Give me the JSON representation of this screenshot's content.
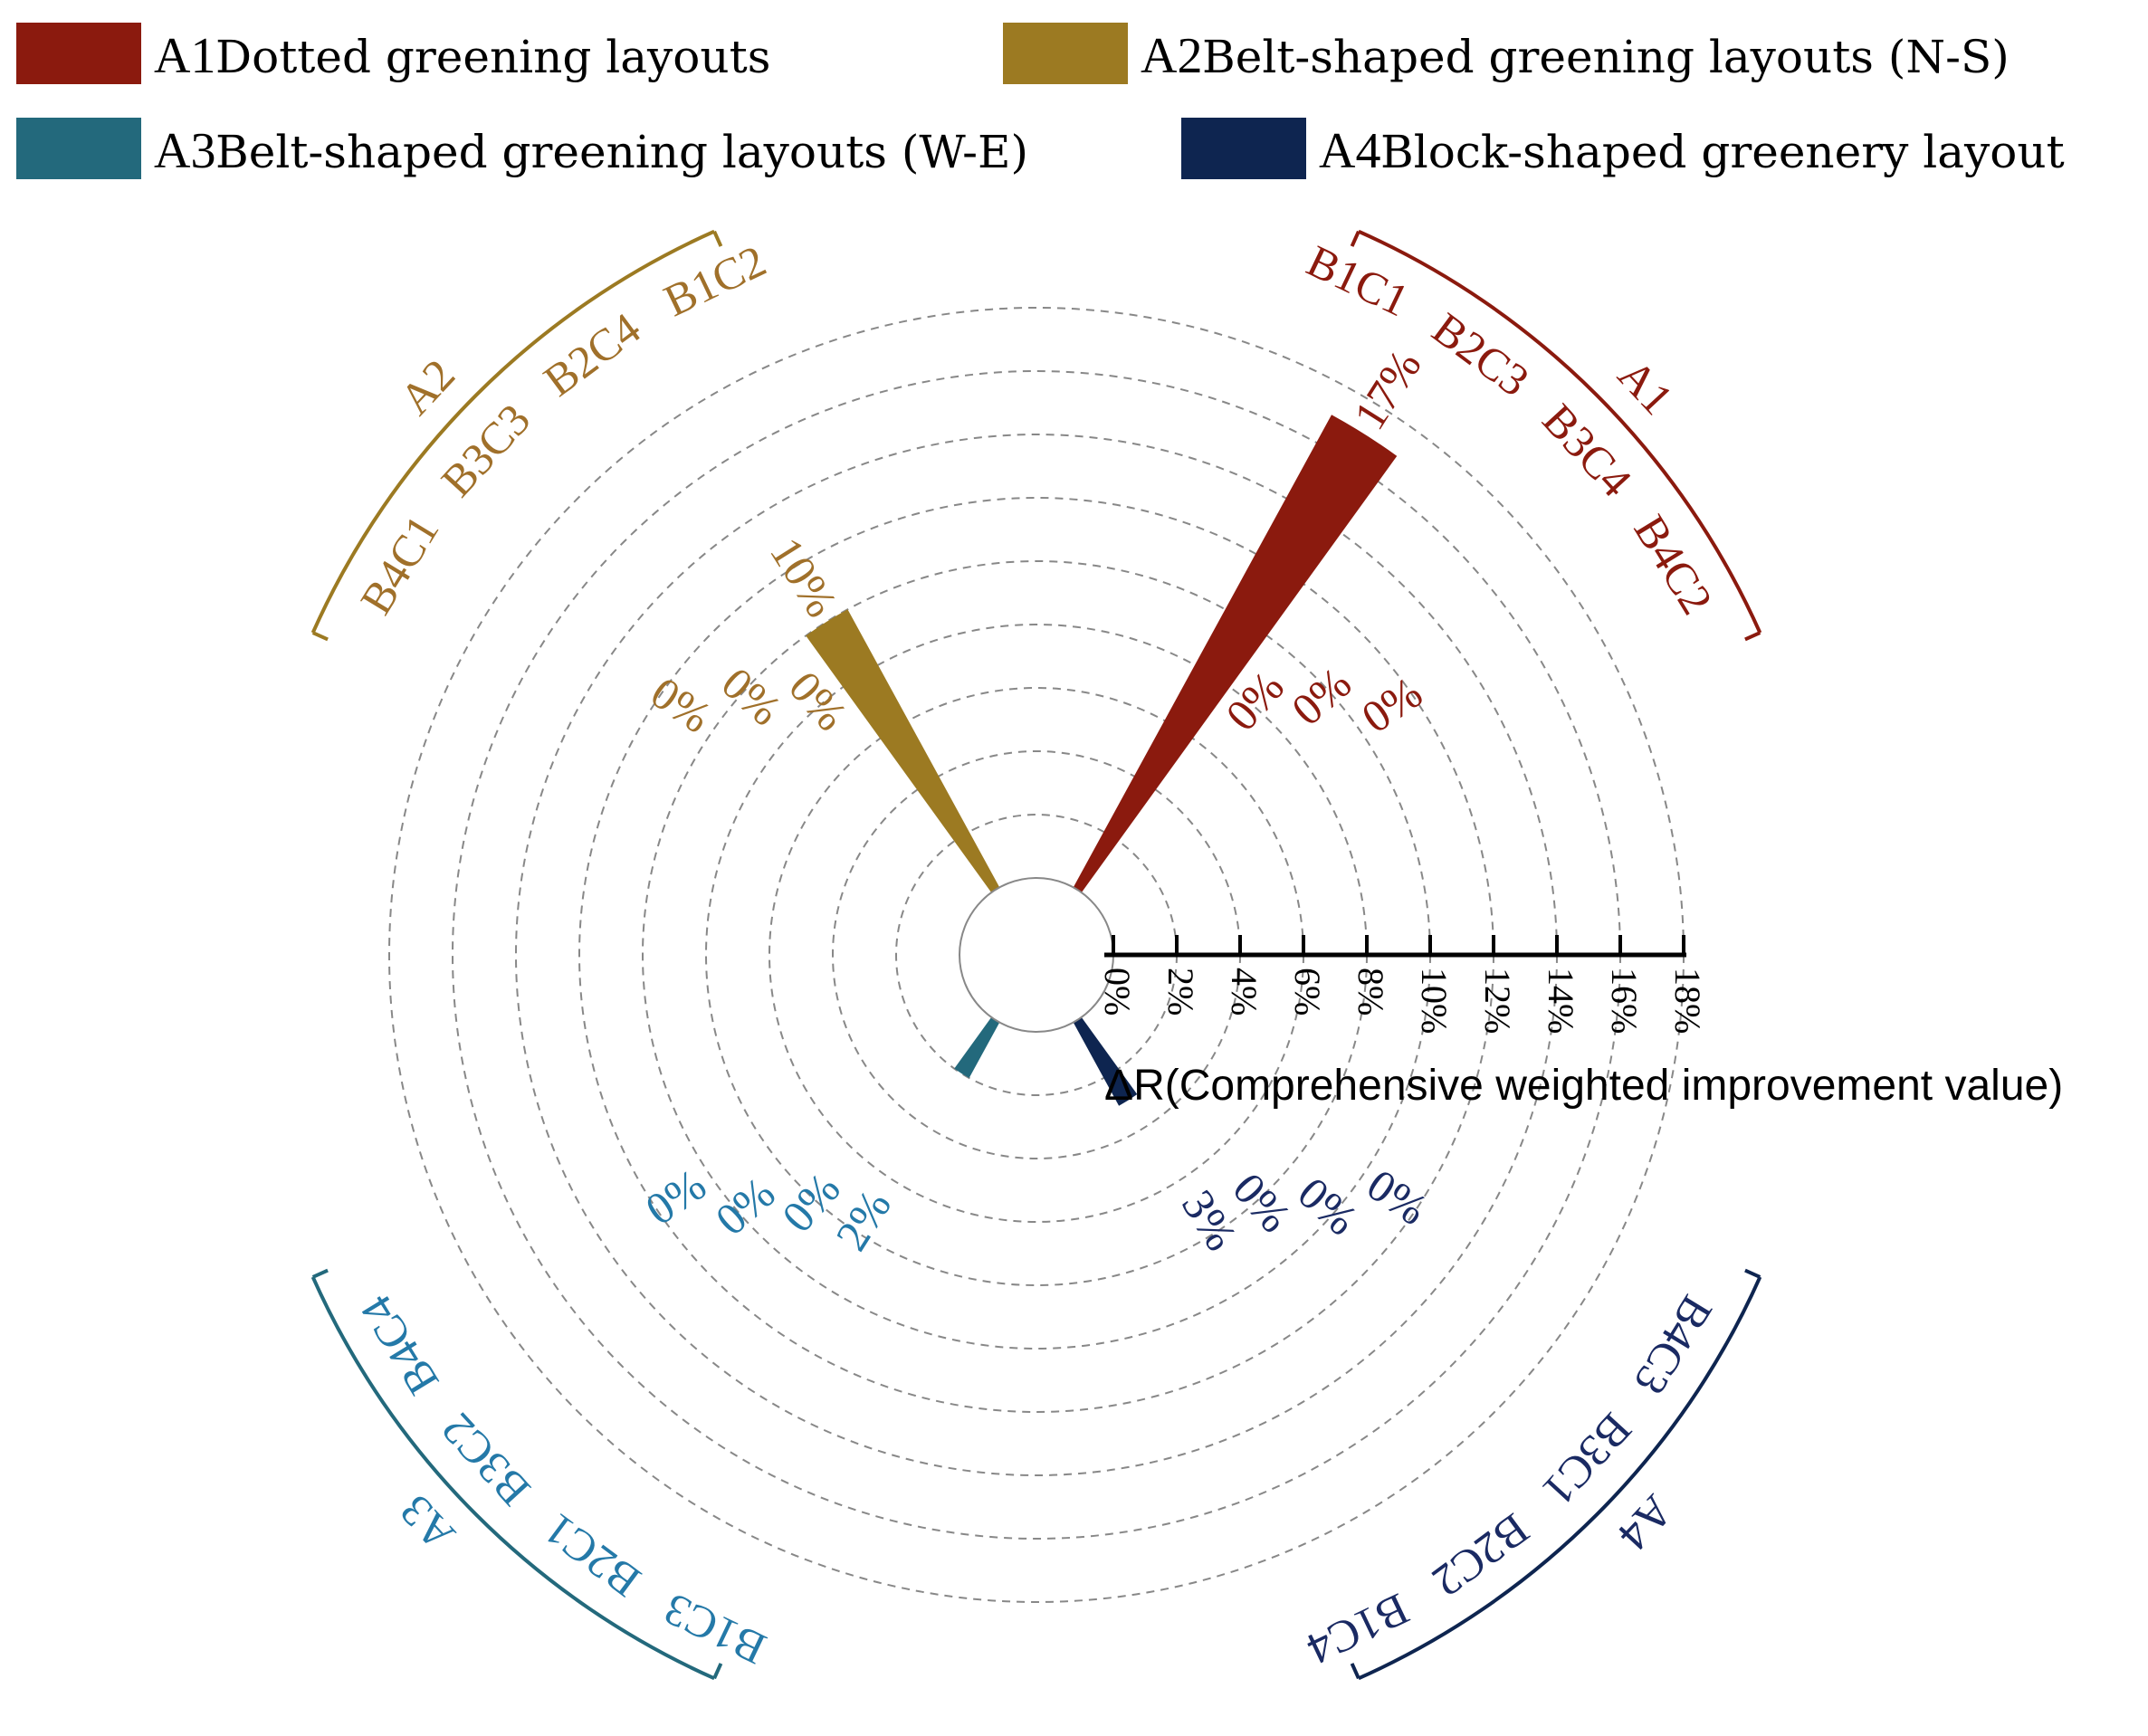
{
  "legend": [
    {
      "code": "A1",
      "label": "Dotted greening layouts",
      "color": "#8B1A0E"
    },
    {
      "code": "A2",
      "label": "Belt-shaped greening layouts (N-S)",
      "color": "#9C7A22"
    },
    {
      "code": "A3",
      "label": "Belt-shaped greening layouts (W-E)",
      "color": "#23697C"
    },
    {
      "code": "A4",
      "label": "Block-shaped greenery layout",
      "color": "#0E2550"
    }
  ],
  "chart_data": {
    "type": "polar-bar",
    "value_axis": {
      "title": "ΔR(Comprehensive weighted improvement value)",
      "ticks": [
        "0%",
        "2%",
        "4%",
        "6%",
        "8%",
        "10%",
        "12%",
        "14%",
        "16%",
        "18%"
      ],
      "range": [
        0,
        18
      ],
      "gridlines": true
    },
    "groups": [
      {
        "name": "A1",
        "color": "#8B1A0E",
        "label_color": "#8B1A0E",
        "items": [
          {
            "category": "B1C1",
            "value": 17,
            "label": "17%"
          },
          {
            "category": "B2C3",
            "value": 0,
            "label": "0%"
          },
          {
            "category": "B3C4",
            "value": 0,
            "label": "0%"
          },
          {
            "category": "B4C2",
            "value": 0,
            "label": "0%"
          }
        ]
      },
      {
        "name": "A2",
        "color": "#9C7A22",
        "label_color": "#A0702A",
        "items": [
          {
            "category": "B1C2",
            "value": 10,
            "label": "10%"
          },
          {
            "category": "B2C4",
            "value": 0,
            "label": "0%"
          },
          {
            "category": "B3C3",
            "value": 0,
            "label": "0%"
          },
          {
            "category": "B4C1",
            "value": 0,
            "label": "0%"
          }
        ]
      },
      {
        "name": "A3",
        "color": "#23697C",
        "label_color": "#2479A8",
        "items": [
          {
            "category": "B1C3",
            "value": 2,
            "label": "2%"
          },
          {
            "category": "B2C1",
            "value": 0,
            "label": "0%"
          },
          {
            "category": "B3C2",
            "value": 0,
            "label": "0%"
          },
          {
            "category": "B4C4",
            "value": 0,
            "label": "0%"
          }
        ]
      },
      {
        "name": "A4",
        "color": "#0E2550",
        "label_color": "#1A2A63",
        "items": [
          {
            "category": "B1C4",
            "value": 3,
            "label": "3%"
          },
          {
            "category": "B2C2",
            "value": 0,
            "label": "0%"
          },
          {
            "category": "B3C1",
            "value": 0,
            "label": "0%"
          },
          {
            "category": "B4C3",
            "value": 0,
            "label": "0%"
          }
        ]
      }
    ]
  }
}
